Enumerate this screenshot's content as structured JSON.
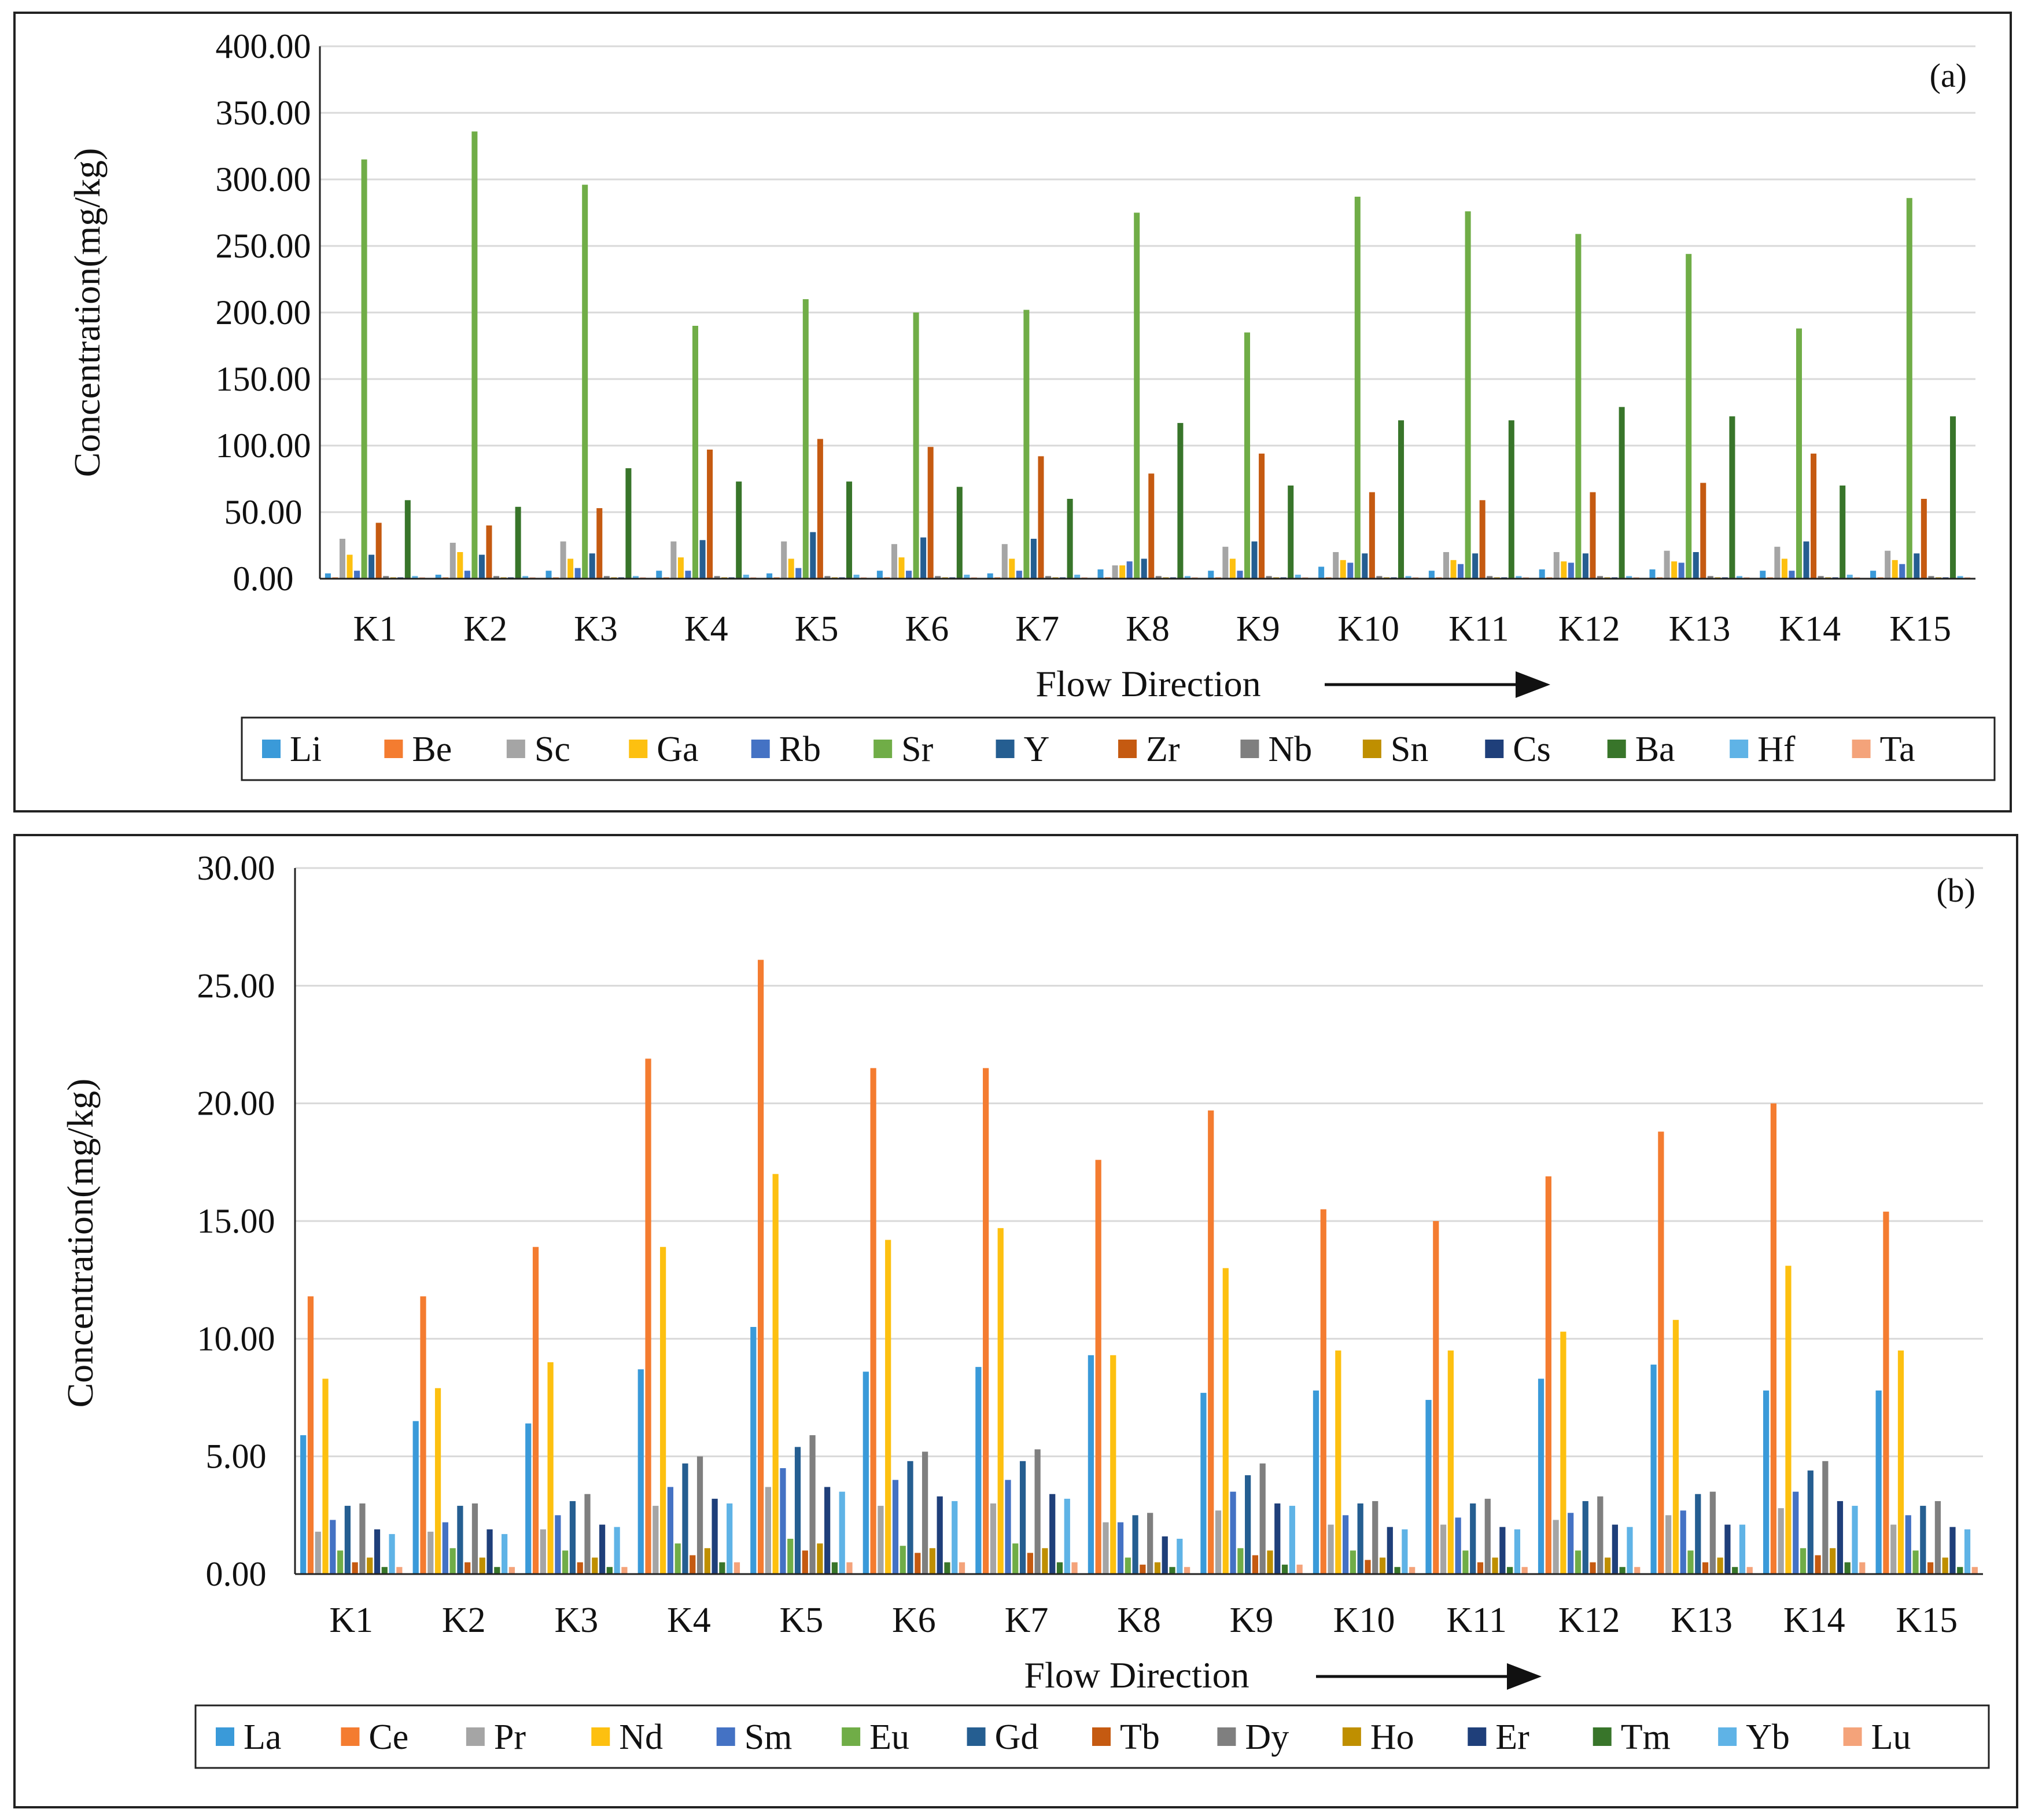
{
  "chart_data": [
    {
      "type": "bar",
      "panel_label": "(a)",
      "xlabel": "Flow Direction",
      "ylabel": "Concentration(mg/kg)",
      "ylim": [
        0,
        400
      ],
      "yticks": [
        "0.00",
        "50.00",
        "100.00",
        "150.00",
        "200.00",
        "250.00",
        "300.00",
        "350.00",
        "400.00"
      ],
      "grid": true,
      "legend": "bottom",
      "categories": [
        "K1",
        "K2",
        "K3",
        "K4",
        "K5",
        "K6",
        "K7",
        "K8",
        "K9",
        "K10",
        "K11",
        "K12",
        "K13",
        "K14",
        "K15"
      ],
      "series": [
        {
          "name": "Li",
          "color": "#3a9ad9",
          "values": [
            4,
            3,
            6,
            6,
            4,
            6,
            4,
            7,
            6,
            9,
            6,
            7,
            7,
            6,
            6
          ]
        },
        {
          "name": "Be",
          "color": "#f47c30",
          "values": [
            1,
            1,
            1,
            1,
            1,
            1,
            1,
            1,
            1,
            1,
            1,
            1,
            1,
            1,
            1
          ]
        },
        {
          "name": "Sc",
          "color": "#a5a5a5",
          "values": [
            30,
            27,
            28,
            28,
            28,
            26,
            26,
            10,
            24,
            20,
            20,
            20,
            21,
            24,
            21
          ]
        },
        {
          "name": "Ga",
          "color": "#fdc010",
          "values": [
            18,
            20,
            15,
            16,
            15,
            16,
            15,
            10,
            15,
            14,
            14,
            13,
            13,
            15,
            14
          ]
        },
        {
          "name": "Rb",
          "color": "#4472c4",
          "values": [
            6,
            6,
            8,
            6,
            8,
            6,
            6,
            13,
            6,
            12,
            11,
            12,
            12,
            6,
            11
          ]
        },
        {
          "name": "Sr",
          "color": "#70ad47",
          "values": [
            315,
            336,
            296,
            190,
            210,
            200,
            202,
            275,
            185,
            287,
            276,
            259,
            244,
            188,
            286
          ]
        },
        {
          "name": "Y",
          "color": "#255e91",
          "values": [
            18,
            18,
            19,
            29,
            35,
            31,
            30,
            15,
            28,
            19,
            19,
            19,
            20,
            28,
            19
          ]
        },
        {
          "name": "Zr",
          "color": "#c55a11",
          "values": [
            42,
            40,
            53,
            97,
            105,
            99,
            92,
            79,
            94,
            65,
            59,
            65,
            72,
            94,
            60
          ]
        },
        {
          "name": "Nb",
          "color": "#7f7f7f",
          "values": [
            2,
            2,
            2,
            2,
            2,
            2,
            2,
            2,
            2,
            2,
            2,
            2,
            2,
            2,
            2
          ]
        },
        {
          "name": "Sn",
          "color": "#bf8f00",
          "values": [
            1,
            1,
            1,
            1,
            1,
            1,
            1,
            1,
            1,
            1,
            1,
            1,
            1,
            1,
            1
          ]
        },
        {
          "name": "Cs",
          "color": "#1f3f7a",
          "values": [
            1,
            1,
            1,
            1,
            1,
            1,
            1,
            1,
            1,
            1,
            1,
            1,
            1,
            1,
            1
          ]
        },
        {
          "name": "Ba",
          "color": "#38752a",
          "values": [
            59,
            54,
            83,
            73,
            73,
            69,
            60,
            117,
            70,
            119,
            119,
            129,
            122,
            70,
            122
          ]
        },
        {
          "name": "Hf",
          "color": "#5fb3e6",
          "values": [
            2,
            2,
            2,
            3,
            3,
            3,
            3,
            2,
            3,
            2,
            2,
            2,
            2,
            3,
            2
          ]
        },
        {
          "name": "Ta",
          "color": "#f4a37a",
          "values": [
            1,
            1,
            1,
            1,
            1,
            1,
            1,
            1,
            1,
            1,
            1,
            1,
            1,
            1,
            1
          ]
        }
      ]
    },
    {
      "type": "bar",
      "panel_label": "(b)",
      "xlabel": "Flow Direction",
      "ylabel": "Concentration(mg/kg)",
      "ylim": [
        0,
        30
      ],
      "yticks": [
        "0.00",
        "5.00",
        "10.00",
        "15.00",
        "20.00",
        "25.00",
        "30.00"
      ],
      "grid": true,
      "legend": "bottom",
      "categories": [
        "K1",
        "K2",
        "K3",
        "K4",
        "K5",
        "K6",
        "K7",
        "K8",
        "K9",
        "K10",
        "K11",
        "K12",
        "K13",
        "K14",
        "K15"
      ],
      "series": [
        {
          "name": "La",
          "color": "#3a9ad9",
          "values": [
            5.9,
            6.5,
            6.4,
            8.7,
            10.5,
            8.6,
            8.8,
            9.3,
            7.7,
            7.8,
            7.4,
            8.3,
            8.9,
            7.8,
            7.8
          ]
        },
        {
          "name": "Ce",
          "color": "#f47c30",
          "values": [
            11.8,
            11.8,
            13.9,
            21.9,
            26.1,
            21.5,
            21.5,
            17.6,
            19.7,
            15.5,
            15.0,
            16.9,
            18.8,
            20.0,
            15.4
          ]
        },
        {
          "name": "Pr",
          "color": "#a5a5a5",
          "values": [
            1.8,
            1.8,
            1.9,
            2.9,
            3.7,
            2.9,
            3.0,
            2.2,
            2.7,
            2.1,
            2.1,
            2.3,
            2.5,
            2.8,
            2.1
          ]
        },
        {
          "name": "Nd",
          "color": "#fdc010",
          "values": [
            8.3,
            7.9,
            9.0,
            13.9,
            17.0,
            14.2,
            14.7,
            9.3,
            13.0,
            9.5,
            9.5,
            10.3,
            10.8,
            13.1,
            9.5
          ]
        },
        {
          "name": "Sm",
          "color": "#4472c4",
          "values": [
            2.3,
            2.2,
            2.5,
            3.7,
            4.5,
            4.0,
            4.0,
            2.2,
            3.5,
            2.5,
            2.4,
            2.6,
            2.7,
            3.5,
            2.5
          ]
        },
        {
          "name": "Eu",
          "color": "#70ad47",
          "values": [
            1.0,
            1.1,
            1.0,
            1.3,
            1.5,
            1.2,
            1.3,
            0.7,
            1.1,
            1.0,
            1.0,
            1.0,
            1.0,
            1.1,
            1.0
          ]
        },
        {
          "name": "Gd",
          "color": "#255e91",
          "values": [
            2.9,
            2.9,
            3.1,
            4.7,
            5.4,
            4.8,
            4.8,
            2.5,
            4.2,
            3.0,
            3.0,
            3.1,
            3.4,
            4.4,
            2.9
          ]
        },
        {
          "name": "Tb",
          "color": "#c55a11",
          "values": [
            0.5,
            0.5,
            0.5,
            0.8,
            1.0,
            0.9,
            0.9,
            0.4,
            0.8,
            0.6,
            0.5,
            0.5,
            0.5,
            0.8,
            0.5
          ]
        },
        {
          "name": "Dy",
          "color": "#7f7f7f",
          "values": [
            3.0,
            3.0,
            3.4,
            5.0,
            5.9,
            5.2,
            5.3,
            2.6,
            4.7,
            3.1,
            3.2,
            3.3,
            3.5,
            4.8,
            3.1
          ]
        },
        {
          "name": "Ho",
          "color": "#bf8f00",
          "values": [
            0.7,
            0.7,
            0.7,
            1.1,
            1.3,
            1.1,
            1.1,
            0.5,
            1.0,
            0.7,
            0.7,
            0.7,
            0.7,
            1.1,
            0.7
          ]
        },
        {
          "name": "Er",
          "color": "#1f3f7a",
          "values": [
            1.9,
            1.9,
            2.1,
            3.2,
            3.7,
            3.3,
            3.4,
            1.6,
            3.0,
            2.0,
            2.0,
            2.1,
            2.1,
            3.1,
            2.0
          ]
        },
        {
          "name": "Tm",
          "color": "#38752a",
          "values": [
            0.3,
            0.3,
            0.3,
            0.5,
            0.5,
            0.5,
            0.5,
            0.3,
            0.4,
            0.3,
            0.3,
            0.3,
            0.3,
            0.5,
            0.3
          ]
        },
        {
          "name": "Yb",
          "color": "#5fb3e6",
          "values": [
            1.7,
            1.7,
            2.0,
            3.0,
            3.5,
            3.1,
            3.2,
            1.5,
            2.9,
            1.9,
            1.9,
            2.0,
            2.1,
            2.9,
            1.9
          ]
        },
        {
          "name": "Lu",
          "color": "#f4a37a",
          "values": [
            0.3,
            0.3,
            0.3,
            0.5,
            0.5,
            0.5,
            0.5,
            0.3,
            0.4,
            0.3,
            0.3,
            0.3,
            0.3,
            0.5,
            0.3
          ]
        }
      ]
    }
  ]
}
